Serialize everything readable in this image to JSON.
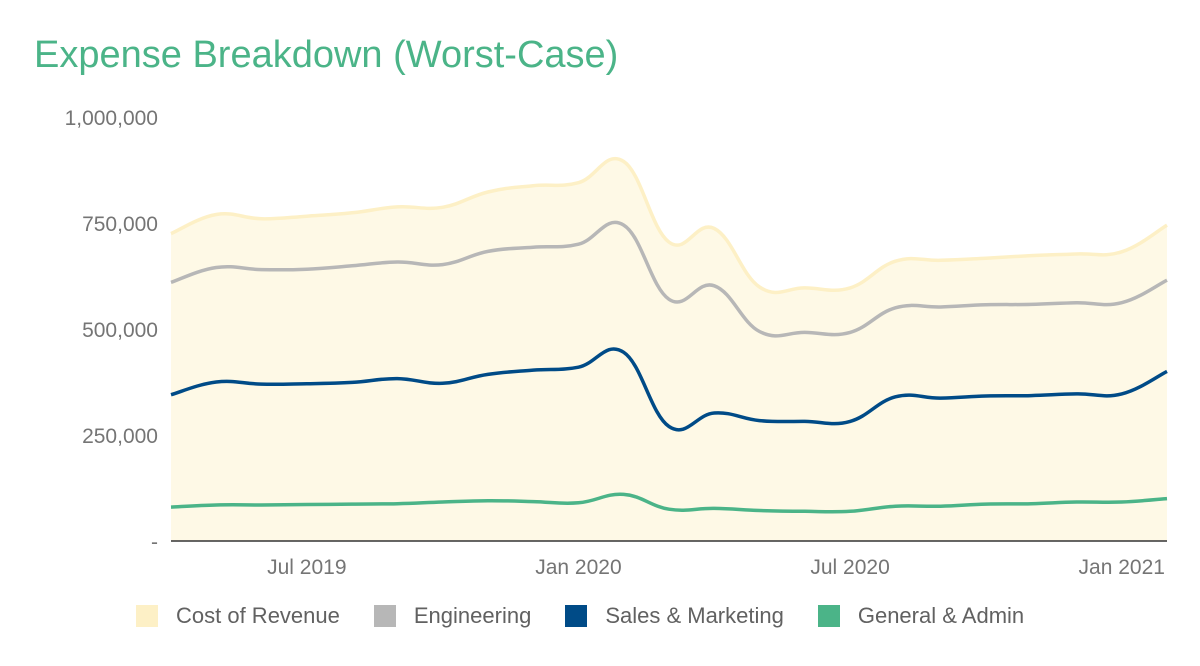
{
  "title": "Expense Breakdown (Worst-Case)",
  "chart_data": {
    "type": "area",
    "stacked": true,
    "title": "Expense Breakdown (Worst-Case)",
    "xlabel": "",
    "ylabel": "",
    "x": [
      "Apr 2019",
      "May 2019",
      "Jun 2019",
      "Jul 2019",
      "Aug 2019",
      "Sep 2019",
      "Oct 2019",
      "Nov 2019",
      "Dec 2019",
      "Jan 2020",
      "Feb 2020",
      "Mar 2020",
      "Apr 2020",
      "May 2020",
      "Jun 2020",
      "Jul 2020",
      "Aug 2020",
      "Sep 2020",
      "Oct 2020",
      "Nov 2020",
      "Dec 2020",
      "Jan 2021",
      "Feb 2021"
    ],
    "x_ticks": [
      "Jul 2019",
      "Jan 2020",
      "Jul 2020",
      "Jan 2021"
    ],
    "y_ticks": [
      "1,000,000",
      "750,000",
      "500,000",
      "250,000",
      "-"
    ],
    "ylim": [
      0,
      1000000
    ],
    "grid": false,
    "legend_position": "bottom",
    "series": [
      {
        "name": "General & Admin",
        "color": "#4bb488",
        "fill": "#c7e9d8",
        "values": [
          80000,
          85000,
          85000,
          86000,
          87000,
          88000,
          92000,
          95000,
          93000,
          90000,
          110000,
          75000,
          77000,
          72000,
          70000,
          70000,
          82000,
          82000,
          87000,
          88000,
          92000,
          92000,
          100000
        ]
      },
      {
        "name": "Sales & Marketing",
        "color": "#004b87",
        "fill": "#b3cadb",
        "values": [
          265000,
          290000,
          285000,
          285000,
          287000,
          295000,
          280000,
          298000,
          310000,
          320000,
          335000,
          195000,
          225000,
          212000,
          212000,
          212000,
          258000,
          255000,
          255000,
          255000,
          255000,
          255000,
          300000
        ]
      },
      {
        "name": "Engineering",
        "color": "#b7b7b7",
        "fill": "#e8e8e8",
        "values": [
          265000,
          270000,
          270000,
          270000,
          275000,
          275000,
          280000,
          290000,
          290000,
          290000,
          300000,
          300000,
          300000,
          210000,
          210000,
          210000,
          210000,
          215000,
          215000,
          215000,
          215000,
          215000,
          215000
        ]
      },
      {
        "name": "Cost of Revenue",
        "color": "#fdf0c6",
        "fill": "#fef9e6",
        "values": [
          115000,
          125000,
          120000,
          125000,
          125000,
          130000,
          135000,
          140000,
          145000,
          145000,
          150000,
          135000,
          135000,
          105000,
          105000,
          105000,
          110000,
          110000,
          110000,
          115000,
          115000,
          120000,
          130000
        ]
      }
    ]
  }
}
